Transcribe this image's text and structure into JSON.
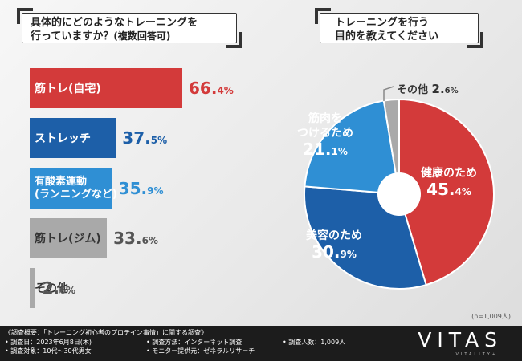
{
  "left_title": {
    "line1": "具体的にどのようなトレーニングを",
    "line2": "行っていますか？",
    "line2_small": "(複数回答可)"
  },
  "right_title": {
    "line1": "トレーニングを行う",
    "line2": "目的を教えてください"
  },
  "colors": {
    "red": "#d33a3a",
    "blue": "#1d5fa8",
    "light_blue": "#2f8fd4",
    "gray": "#a9a9a9"
  },
  "chart_data": [
    {
      "type": "bar",
      "orientation": "horizontal",
      "title": "具体的にどのようなトレーニングを行っていますか？(複数回答可)",
      "categories": [
        "筋トレ(自宅)",
        "ストレッチ",
        "有酸素運動(ランニングなど)",
        "筋トレ(ジム)",
        "その他"
      ],
      "label_lines": [
        [
          "筋トレ(自宅)"
        ],
        [
          "ストレッチ"
        ],
        [
          "有酸素運動",
          "(ランニングなど)"
        ],
        [
          "筋トレ(ジム)"
        ],
        [
          "その他"
        ]
      ],
      "values": [
        66.4,
        37.5,
        35.9,
        33.6,
        2.6
      ],
      "value_int": [
        "66.",
        "37.",
        "35.",
        "33.",
        "2."
      ],
      "value_dec": [
        "4%",
        "5%",
        "9%",
        "6%",
        "6%"
      ],
      "unit": "%"
    },
    {
      "type": "pie",
      "donut": true,
      "title": "トレーニングを行う目的を教えてください",
      "categories": [
        "健康のため",
        "美容のため",
        "筋肉をつけるため",
        "その他"
      ],
      "values": [
        45.4,
        30.9,
        21.1,
        2.6
      ],
      "label_lines": [
        [
          "健康のため"
        ],
        [
          "美容のため"
        ],
        [
          "筋肉を",
          "つけるため"
        ],
        [
          "その他"
        ]
      ],
      "value_int": [
        "45.",
        "30.",
        "21.",
        "2."
      ],
      "value_dec": [
        "4%",
        "9%",
        "1%",
        "6%"
      ],
      "unit": "%"
    }
  ],
  "sample_note": "(n=1,009人)",
  "footer": {
    "overview": "《調査概要：「トレーニング初心者のプロテイン事情」に関する調査》",
    "date": "• 調査日：2023年6月8日(木)",
    "target": "• 調査対象：10代〜30代男女",
    "method": "• 調査方法：インターネット調査",
    "provider": "• モニター提供元：ゼネラルリサーチ",
    "count": "• 調査人数：1,009人",
    "logo": "VITAS",
    "logo_sub": "VITALITY+"
  }
}
